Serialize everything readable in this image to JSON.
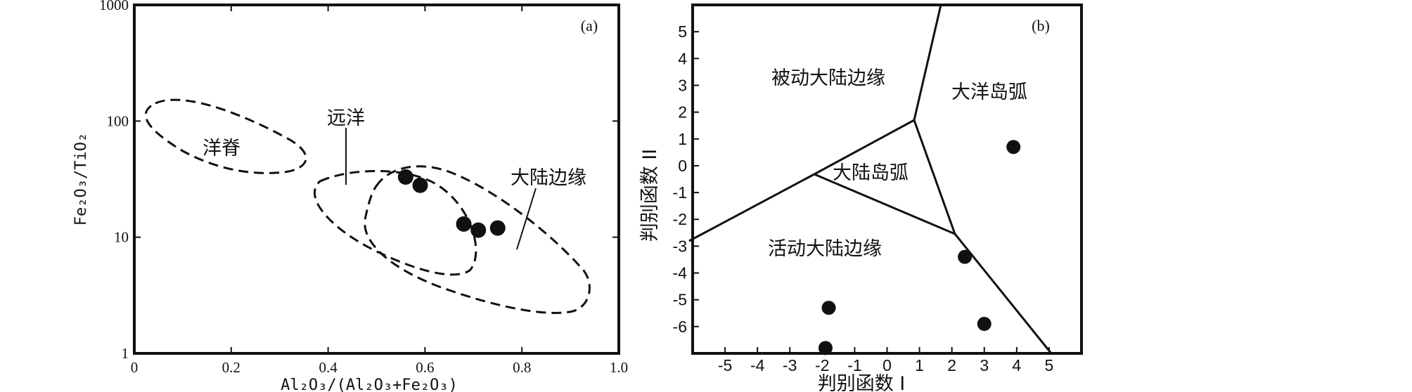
{
  "chart_data": [
    {
      "type": "scatter",
      "panel_label": "(a)",
      "xlabel": "Al₂O₃/(Al₂O₃+Fe₂O₃)",
      "ylabel": "Fe₂O₃/TiO₂",
      "xlim": [
        0,
        1.0
      ],
      "ylim": [
        1,
        1000
      ],
      "y_scale": "log",
      "x_ticks": [
        "0",
        "0.2",
        "0.4",
        "0.6",
        "0.8",
        "1.0"
      ],
      "y_ticks": [
        "1",
        "10",
        "100",
        "1000"
      ],
      "grid": false,
      "regions": [
        "洋脊",
        "远洋",
        "大陆边缘"
      ],
      "points": [
        {
          "x": 0.56,
          "y": 33
        },
        {
          "x": 0.59,
          "y": 28
        },
        {
          "x": 0.68,
          "y": 13
        },
        {
          "x": 0.71,
          "y": 11.5
        },
        {
          "x": 0.75,
          "y": 12
        }
      ]
    },
    {
      "type": "scatter",
      "panel_label": "(b)",
      "xlabel": "判别函数 I",
      "ylabel": "判别函数 II",
      "xlim": [
        -6,
        6
      ],
      "ylim": [
        -7,
        6
      ],
      "x_ticks": [
        "-5",
        "-4",
        "-3",
        "-2",
        "-1",
        "0",
        "1",
        "2",
        "3",
        "4",
        "5"
      ],
      "y_ticks": [
        "5",
        "4",
        "3",
        "2",
        "1",
        "0",
        "-1",
        "-2",
        "-3",
        "-4",
        "-5",
        "-6"
      ],
      "grid": false,
      "regions": [
        "被动大陆边缘",
        "大洋岛弧",
        "大陆岛弧",
        "活动大陆边缘"
      ],
      "points": [
        {
          "x": 3.9,
          "y": 0.7
        },
        {
          "x": 2.4,
          "y": -3.4
        },
        {
          "x": -1.8,
          "y": -5.3
        },
        {
          "x": 3.0,
          "y": -5.9
        },
        {
          "x": -1.9,
          "y": -6.8
        }
      ]
    }
  ]
}
